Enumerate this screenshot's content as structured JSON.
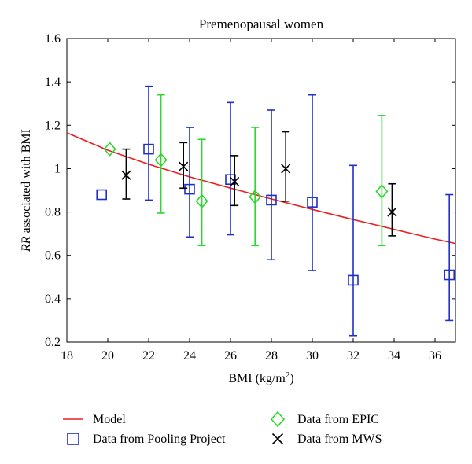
{
  "chart_data": {
    "type": "scatter",
    "title": "Premenopausal women",
    "xlabel": "BMI (kg/m²)",
    "xlabel_parts": {
      "main": "BMI (kg/m",
      "sup": "2",
      "tail": ")"
    },
    "ylabel": "RR associated with BMI",
    "ylabel_parts": {
      "italic": "RR",
      "rest": " associated with BMI"
    },
    "xlim": [
      18,
      37
    ],
    "ylim": [
      0.2,
      1.6
    ],
    "xticks": [
      18,
      20,
      22,
      24,
      26,
      28,
      30,
      32,
      34,
      36
    ],
    "yticks": [
      0.2,
      0.4,
      0.6,
      0.8,
      1,
      1.2,
      1.4,
      1.6
    ],
    "ytick_labels": [
      "0.2",
      "0.4",
      "0.6",
      "0.8",
      "1",
      "1.2",
      "1.4",
      "1.6"
    ],
    "grid": false,
    "legend_position": "bottom",
    "series": [
      {
        "name": "Model",
        "kind": "line",
        "color": "#e8201f",
        "points": [
          [
            18,
            1.165
          ],
          [
            20,
            1.085
          ],
          [
            22,
            1.02
          ],
          [
            24,
            0.962
          ],
          [
            26,
            0.91
          ],
          [
            28,
            0.86
          ],
          [
            30,
            0.812
          ],
          [
            32,
            0.765
          ],
          [
            34,
            0.72
          ],
          [
            36,
            0.675
          ],
          [
            37,
            0.655
          ]
        ]
      },
      {
        "name": "Data from Pooling Project",
        "kind": "square",
        "color": "#1f2fc8",
        "points": [
          {
            "x": 19.7,
            "y": 0.88,
            "lo": null,
            "hi": null
          },
          {
            "x": 22.0,
            "y": 1.09,
            "lo": 0.855,
            "hi": 1.38
          },
          {
            "x": 24.0,
            "y": 0.905,
            "lo": 0.685,
            "hi": 1.19
          },
          {
            "x": 26.0,
            "y": 0.95,
            "lo": 0.695,
            "hi": 1.305
          },
          {
            "x": 28.0,
            "y": 0.855,
            "lo": 0.58,
            "hi": 1.27
          },
          {
            "x": 30.0,
            "y": 0.845,
            "lo": 0.53,
            "hi": 1.34
          },
          {
            "x": 32.0,
            "y": 0.485,
            "lo": 0.23,
            "hi": 1.015
          },
          {
            "x": 36.7,
            "y": 0.51,
            "lo": 0.3,
            "hi": 0.88
          }
        ]
      },
      {
        "name": "Data from EPIC",
        "kind": "diamond",
        "color": "#2ed62e",
        "points": [
          {
            "x": 20.1,
            "y": 1.09,
            "lo": null,
            "hi": null
          },
          {
            "x": 22.6,
            "y": 1.04,
            "lo": 0.795,
            "hi": 1.34
          },
          {
            "x": 24.6,
            "y": 0.85,
            "lo": 0.645,
            "hi": 1.135
          },
          {
            "x": 27.2,
            "y": 0.87,
            "lo": 0.645,
            "hi": 1.19
          },
          {
            "x": 33.4,
            "y": 0.895,
            "lo": 0.645,
            "hi": 1.245
          }
        ]
      },
      {
        "name": "Data from MWS",
        "kind": "cross",
        "color": "#000000",
        "points": [
          {
            "x": 20.9,
            "y": 0.97,
            "lo": 0.86,
            "hi": 1.09
          },
          {
            "x": 23.7,
            "y": 1.01,
            "lo": 0.91,
            "hi": 1.12
          },
          {
            "x": 26.2,
            "y": 0.94,
            "lo": 0.83,
            "hi": 1.06
          },
          {
            "x": 28.7,
            "y": 1.0,
            "lo": 0.85,
            "hi": 1.17
          },
          {
            "x": 33.9,
            "y": 0.8,
            "lo": 0.69,
            "hi": 0.93
          }
        ]
      }
    ],
    "legend": [
      {
        "label": "Model",
        "kind": "line",
        "color": "#e8201f"
      },
      {
        "label": "Data from Pooling Project",
        "kind": "square",
        "color": "#1f2fc8"
      },
      {
        "label": "Data from EPIC",
        "kind": "diamond",
        "color": "#2ed62e"
      },
      {
        "label": "Data from MWS",
        "kind": "cross",
        "color": "#000000"
      }
    ]
  }
}
